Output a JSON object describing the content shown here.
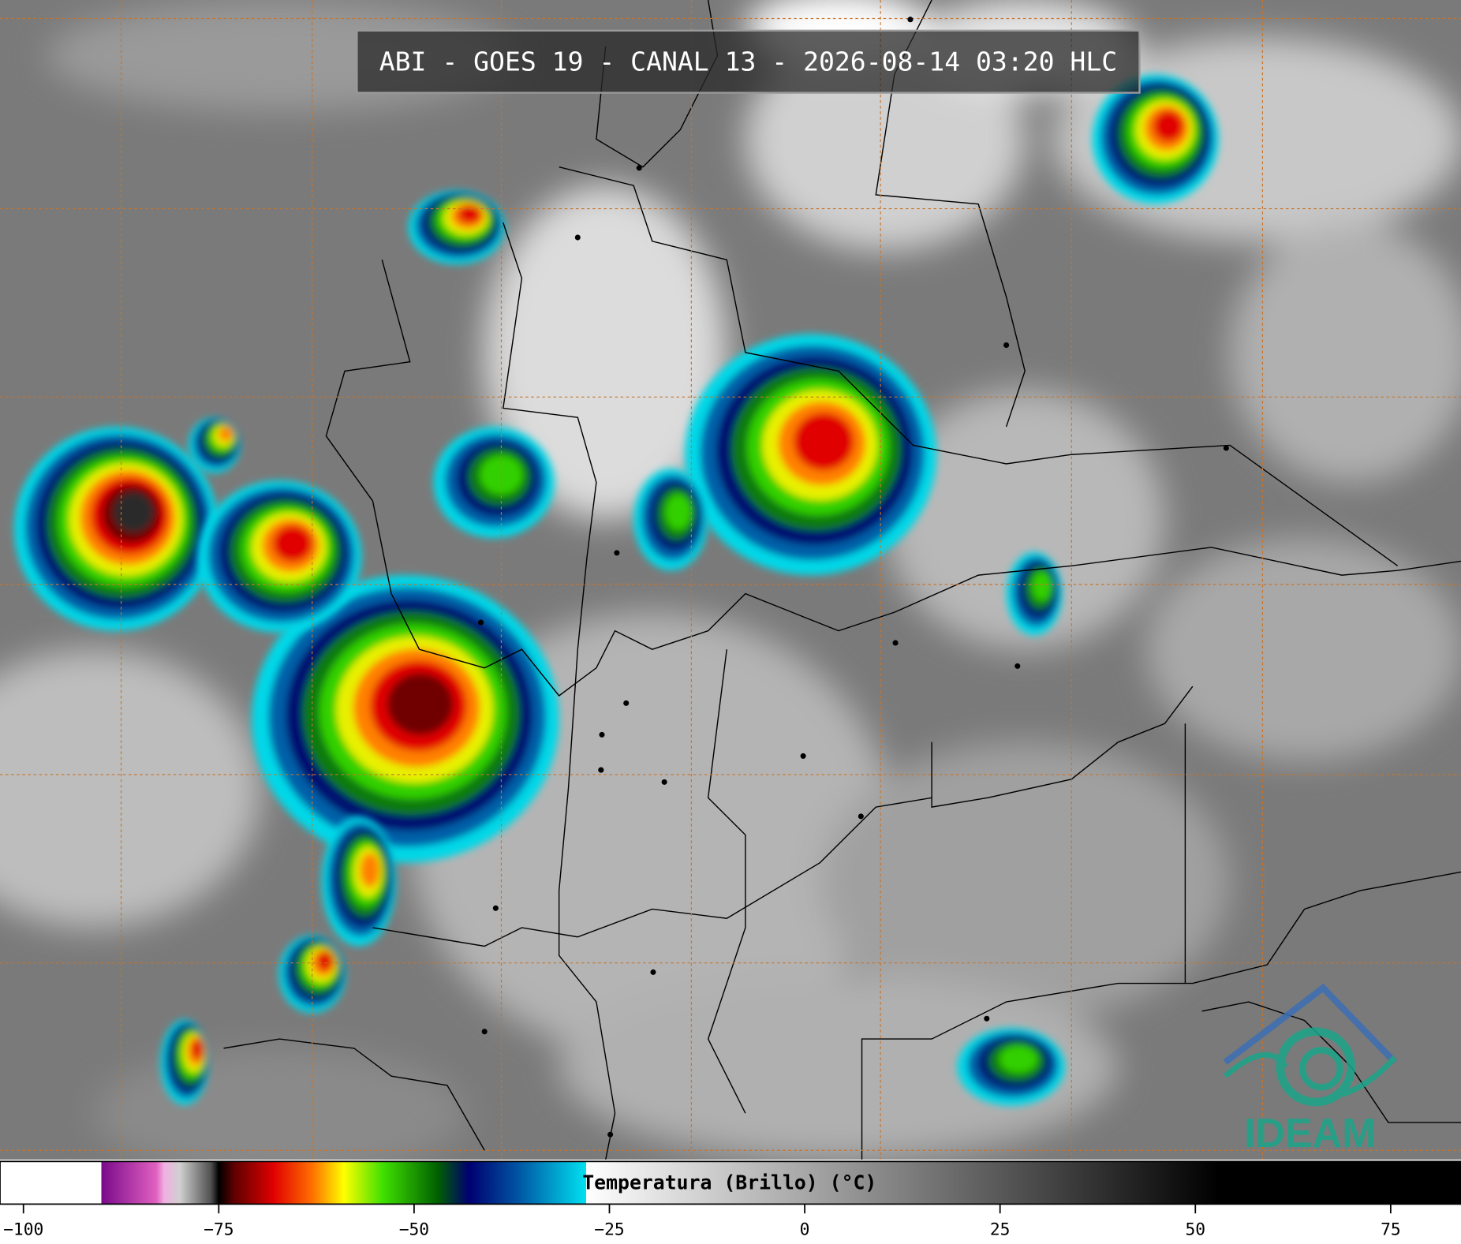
{
  "header": {
    "title": "ABI - GOES 19 - CANAL 13 - 2026-08-14 03:20 HLC"
  },
  "colorbar": {
    "label": "Temperatura (Brillo) (°C)",
    "lim": [
      -103,
      84
    ],
    "ticks": [
      {
        "value": -100,
        "label": "−100"
      },
      {
        "value": -75,
        "label": "−75"
      },
      {
        "value": -50,
        "label": "−50"
      },
      {
        "value": -25,
        "label": "−25"
      },
      0,
      25,
      50,
      75
    ],
    "stops": [
      {
        "value": -103,
        "color": "#ffffff"
      },
      {
        "value": -90,
        "color": "#ffffff"
      },
      {
        "value": -90,
        "color": "#7a0a8a"
      },
      {
        "value": -83,
        "color": "#e060c0"
      },
      {
        "value": -82,
        "color": "#f0b0e0"
      },
      {
        "value": -80,
        "color": "#d0d0d0"
      },
      {
        "value": -76,
        "color": "#505050"
      },
      {
        "value": -75,
        "color": "#000000"
      },
      {
        "value": -73,
        "color": "#600000"
      },
      {
        "value": -68,
        "color": "#e00000"
      },
      {
        "value": -63,
        "color": "#ff7000"
      },
      {
        "value": -59,
        "color": "#ffff00"
      },
      {
        "value": -54,
        "color": "#40e000"
      },
      {
        "value": -47,
        "color": "#006000"
      },
      {
        "value": -43,
        "color": "#000070"
      },
      {
        "value": -37,
        "color": "#0050a0"
      },
      {
        "value": -28,
        "color": "#00e0f0"
      },
      {
        "value": -28,
        "color": "#ffffff"
      },
      {
        "value": 53,
        "color": "#000000"
      },
      {
        "value": 84,
        "color": "#000000"
      }
    ]
  },
  "logo": {
    "text": "IDEAM"
  }
}
